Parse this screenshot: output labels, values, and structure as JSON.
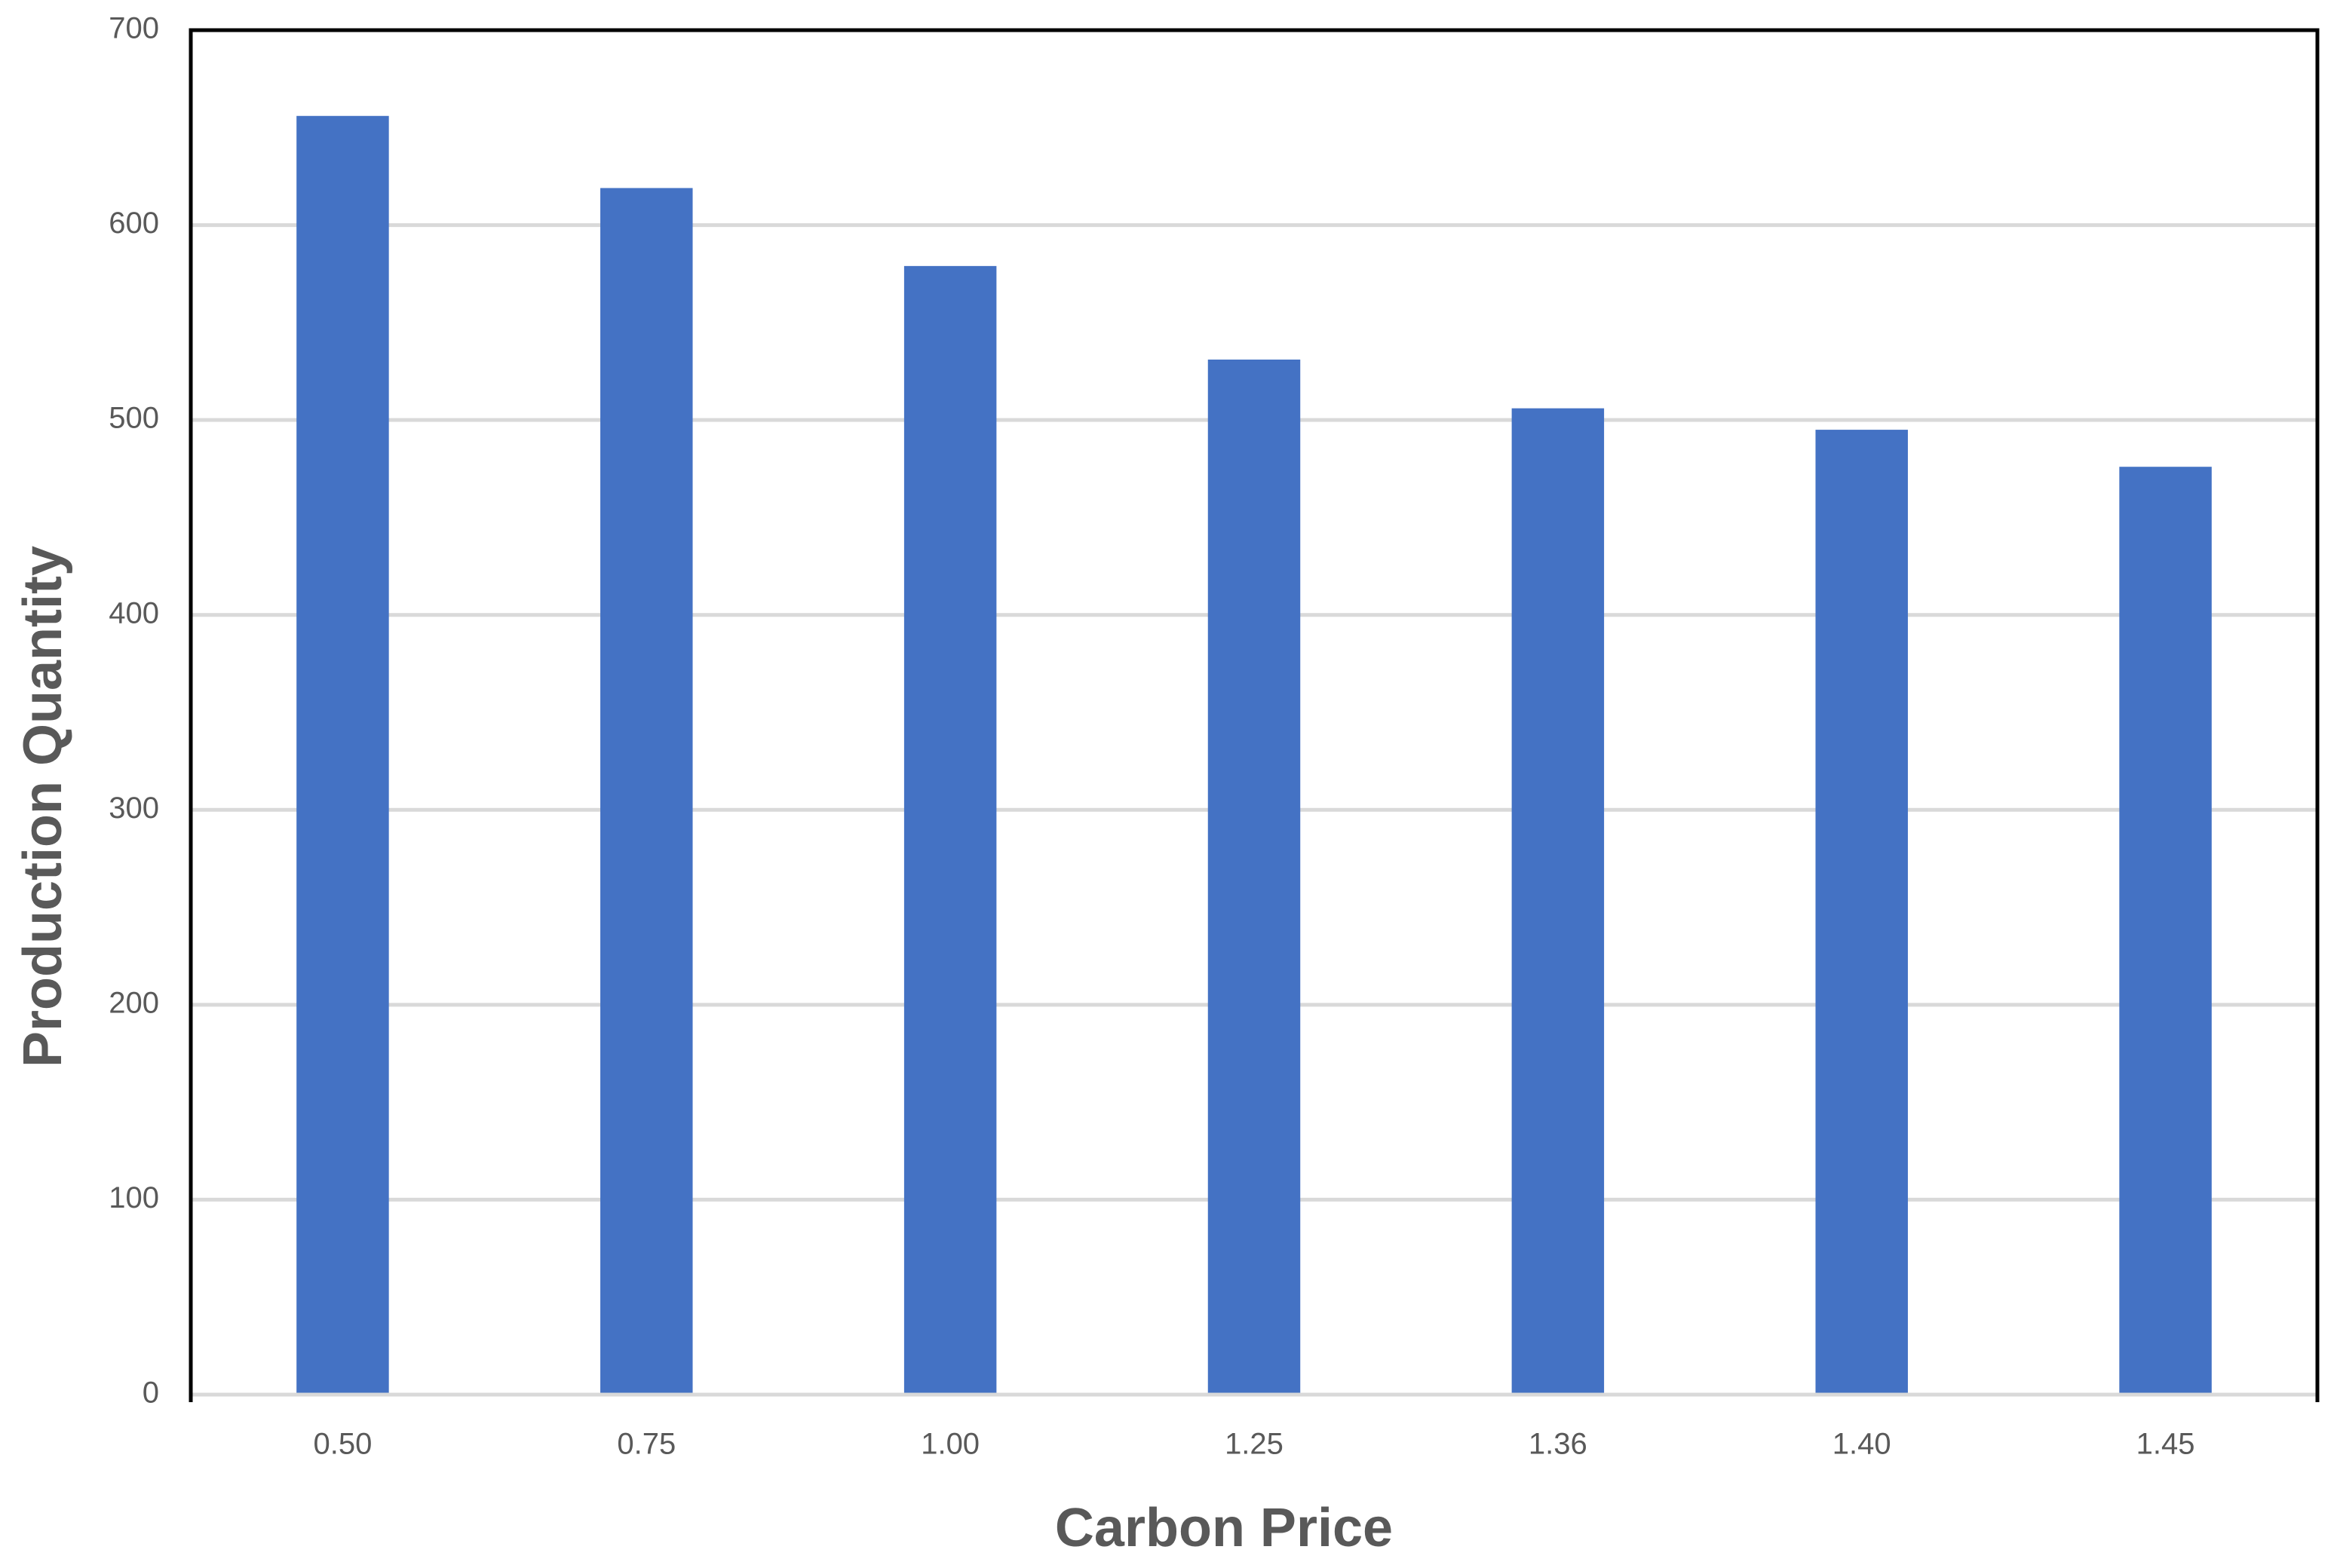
{
  "chart_data": {
    "type": "bar",
    "x_label": "Carbon Price",
    "y_label": "Production Quantity",
    "categories": [
      "0.50",
      "0.75",
      "1.00",
      "1.25",
      "1.36",
      "1.40",
      "1.45"
    ],
    "values": [
      656,
      619,
      579,
      531,
      506,
      495,
      476
    ],
    "color": "#4472c4",
    "ylim": [
      0,
      700
    ],
    "yticks": [
      0,
      100,
      200,
      300,
      400,
      500,
      600,
      700
    ],
    "grid": true
  }
}
